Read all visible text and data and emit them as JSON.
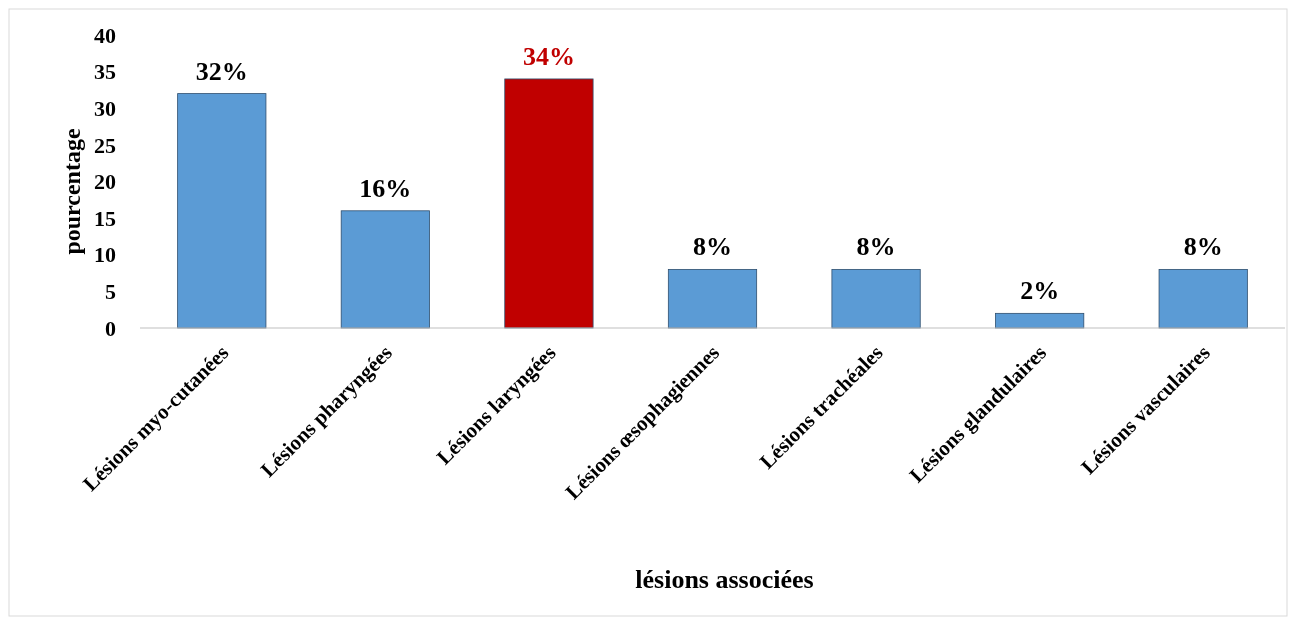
{
  "chart_data": {
    "type": "bar",
    "xlabel": "lésions associées",
    "ylabel": "pourcentage",
    "categories": [
      "Lésions myo-cutanées",
      "Lésions pharyngées",
      "Lésions laryngées",
      "Lésions œsophagiennes",
      "Lésions trachéales",
      "Lésions glandulaires",
      "Lésions vasculaires"
    ],
    "values": [
      32,
      16,
      34,
      8,
      8,
      2,
      8
    ],
    "colors": [
      "#5b9bd5",
      "#5b9bd5",
      "#c00000",
      "#5b9bd5",
      "#5b9bd5",
      "#5b9bd5",
      "#5b9bd5"
    ],
    "value_labels": [
      "32%",
      "16%",
      "34%",
      "8%",
      "8%",
      "2%",
      "8%"
    ],
    "ylim": [
      0,
      40
    ],
    "yticks": [
      0,
      5,
      10,
      15,
      20,
      25,
      30,
      35,
      40
    ],
    "grid": false
  }
}
